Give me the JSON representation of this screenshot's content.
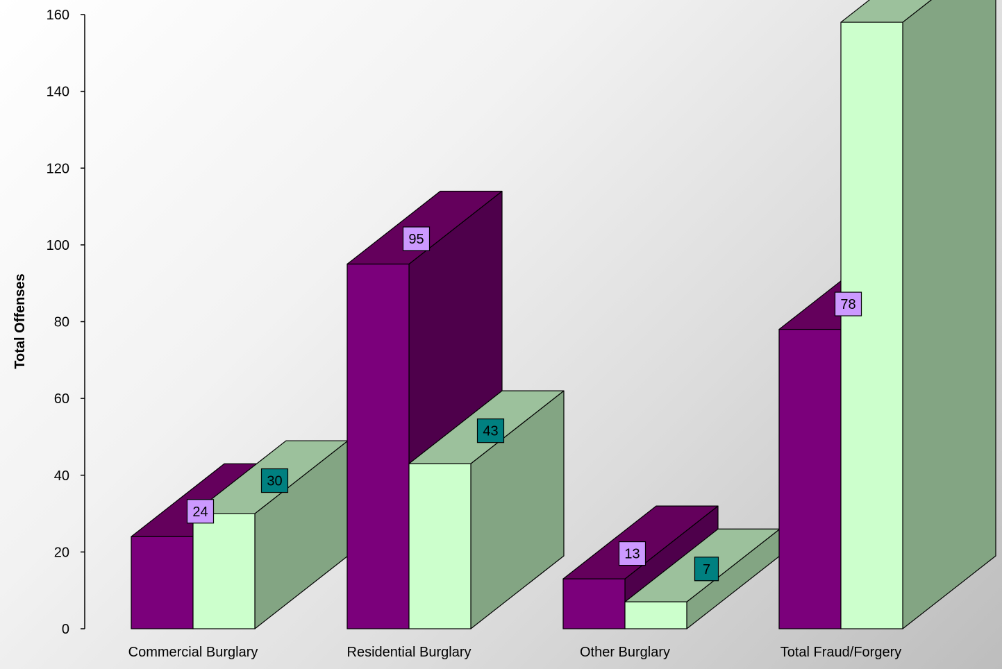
{
  "chart_data": {
    "type": "bar",
    "title": "",
    "xlabel": "",
    "ylabel": "Total Offenses",
    "ylim": [
      0,
      160
    ],
    "yticks": [
      0,
      20,
      40,
      60,
      80,
      100,
      120,
      140,
      160
    ],
    "categories": [
      "Commercial Burglary",
      "Residential Burglary",
      "Other Burglary",
      "Total Fraud/Forgery"
    ],
    "series": [
      {
        "values": [
          24,
          95,
          13,
          78
        ],
        "data_labels": [
          "24",
          "95",
          "13",
          "78"
        ]
      },
      {
        "values": [
          30,
          43,
          7,
          158
        ],
        "data_labels": [
          "30",
          "43",
          "7",
          ""
        ]
      }
    ],
    "colors": {
      "series1_front": "#7b007b",
      "series1_top": "#64005c",
      "series1_side": "#4e004b",
      "series2_front": "#ccffcc",
      "series2_top": "#9cc19c",
      "series2_side": "#83a583",
      "label1_bg": "#cc99ff",
      "label2_bg": "#008080"
    },
    "grid": false,
    "legend": "none"
  }
}
